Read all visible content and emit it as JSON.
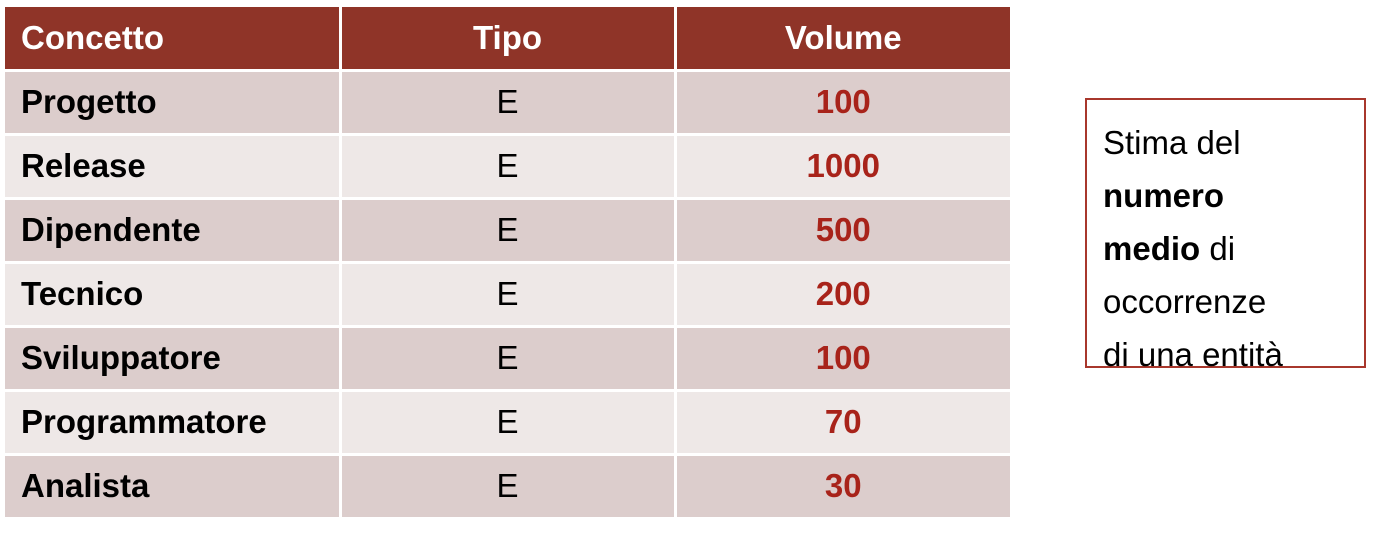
{
  "table": {
    "headers": [
      "Concetto",
      "Tipo",
      "Volume"
    ],
    "rows": [
      {
        "concetto": "Progetto",
        "tipo": "E",
        "volume": "100"
      },
      {
        "concetto": "Release",
        "tipo": "E",
        "volume": "1000"
      },
      {
        "concetto": "Dipendente",
        "tipo": "E",
        "volume": "500"
      },
      {
        "concetto": "Tecnico",
        "tipo": "E",
        "volume": "200"
      },
      {
        "concetto": "Sviluppatore",
        "tipo": "E",
        "volume": "100"
      },
      {
        "concetto": "Programmatore",
        "tipo": "E",
        "volume": "70"
      },
      {
        "concetto": "Analista",
        "tipo": "E",
        "volume": "30"
      }
    ]
  },
  "note": {
    "line1": "Stima del",
    "bold1": "numero",
    "bold2": "medio",
    "after_bold2": " di",
    "line4": "occorrenze",
    "line5": "di una entità"
  },
  "colors": {
    "header_bg": "#8f3428",
    "row_dark": "#dccdcc",
    "row_light": "#eee8e7",
    "volume_text": "#a8231a",
    "note_border": "#a8372c"
  }
}
